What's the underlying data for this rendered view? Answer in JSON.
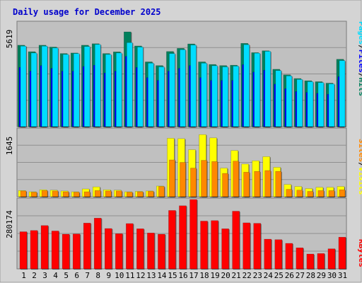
{
  "chart_data": {
    "type": "bar",
    "title": "Daily usage for December 2025",
    "categories": [
      "1",
      "2",
      "3",
      "4",
      "5",
      "6",
      "7",
      "8",
      "9",
      "10",
      "11",
      "12",
      "13",
      "14",
      "15",
      "16",
      "17",
      "18",
      "19",
      "20",
      "21",
      "22",
      "23",
      "24",
      "25",
      "26",
      "27",
      "28",
      "29",
      "30",
      "31"
    ],
    "weekend_days": [
      6,
      7,
      13,
      14,
      20,
      21,
      27,
      28
    ],
    "colors": {
      "hits": "#00805c",
      "files": "#0000ff",
      "pages": "#00ddff",
      "visits": "#ffff00",
      "sites": "#ff8800",
      "kbytes": "#ff0000",
      "weekday_label": "#000000",
      "weekend_label": "#00805c",
      "plot_background": "#c0c0c0",
      "panel_background": "#d4d4d4",
      "title": "#0000cc"
    },
    "panels": [
      {
        "id": "top",
        "max_label": "5619",
        "ymax": 5619,
        "legend": [
          {
            "text": "Pages",
            "color": "#00ddff"
          },
          {
            "text": "/",
            "color": "#000000"
          },
          {
            "text": "Files",
            "color": "#0000ff"
          },
          {
            "text": "/",
            "color": "#000000"
          },
          {
            "text": "Hits",
            "color": "#00805c"
          }
        ],
        "series": [
          {
            "name": "Hits",
            "color": "#00805c",
            "values": [
              4400,
              4050,
              4400,
              4300,
              3950,
              3980,
              4400,
              4480,
              3950,
              4040,
              5120,
              4360,
              3500,
              3300,
              4060,
              4230,
              4470,
              3500,
              3360,
              3300,
              3320,
              4500,
              4000,
              4100,
              3100,
              2800,
              2600,
              2480,
              2430,
              2350,
              3640
            ]
          },
          {
            "name": "Files",
            "color": "#0000ff",
            "values": [
              3200,
              3000,
              3300,
              3150,
              3000,
              3000,
              3250,
              3320,
              2900,
              3000,
              3800,
              3200,
              2650,
              2500,
              3000,
              3150,
              3300,
              2650,
              2500,
              2500,
              2500,
              3350,
              2950,
              3050,
              2300,
              2050,
              1900,
              1850,
              1800,
              1750,
              2700
            ]
          },
          {
            "name": "Pages",
            "color": "#00ddff",
            "values": [
              4350,
              3980,
              4350,
              4250,
              3900,
              3950,
              4330,
              4440,
              3900,
              3980,
              4540,
              4300,
              3430,
              3230,
              3950,
              4160,
              4410,
              3430,
              3290,
              3230,
              3270,
              4430,
              3970,
              4070,
              3030,
              2740,
              2550,
              2430,
              2380,
              2310,
              3570
            ]
          }
        ]
      },
      {
        "id": "middle",
        "max_label": "1645",
        "ymax": 1645,
        "legend": [
          {
            "text": "Sites",
            "color": "#ff8800"
          },
          {
            "text": "/",
            "color": "#000000"
          },
          {
            "text": "Visits",
            "color": "#ffff00"
          }
        ],
        "series": [
          {
            "name": "Visits",
            "color": "#ffff00",
            "values": [
              150,
              120,
              170,
              160,
              140,
              120,
              190,
              240,
              170,
              160,
              120,
              130,
              140,
              260,
              1430,
              1420,
              1150,
              1520,
              1440,
              700,
              1130,
              800,
              880,
              980,
              720,
              300,
              250,
              200,
              230,
              230,
              250
            ]
          },
          {
            "name": "Sites",
            "color": "#ff8800",
            "values": [
              140,
              110,
              150,
              140,
              120,
              110,
              120,
              150,
              140,
              140,
              110,
              120,
              130,
              250,
              900,
              840,
              700,
              890,
              860,
              570,
              870,
              600,
              620,
              640,
              620,
              180,
              160,
              130,
              150,
              150,
              170
            ]
          }
        ]
      },
      {
        "id": "bottom",
        "max_label": "280174",
        "ymax": 280174,
        "legend": [
          {
            "text": "KBytes",
            "color": "#ff0000"
          }
        ],
        "series": [
          {
            "name": "KBytes",
            "color": "#ff0000",
            "values": [
              150000,
              155000,
              175000,
              153000,
              140000,
              141000,
              185000,
              205000,
              163000,
              142000,
              183000,
              162000,
              145000,
              140000,
              236000,
              255000,
              280174,
              193000,
              195000,
              162000,
              233000,
              186000,
              184000,
              120000,
              118000,
              103000,
              85000,
              60000,
              62000,
              81000,
              128000
            ]
          }
        ]
      }
    ]
  }
}
